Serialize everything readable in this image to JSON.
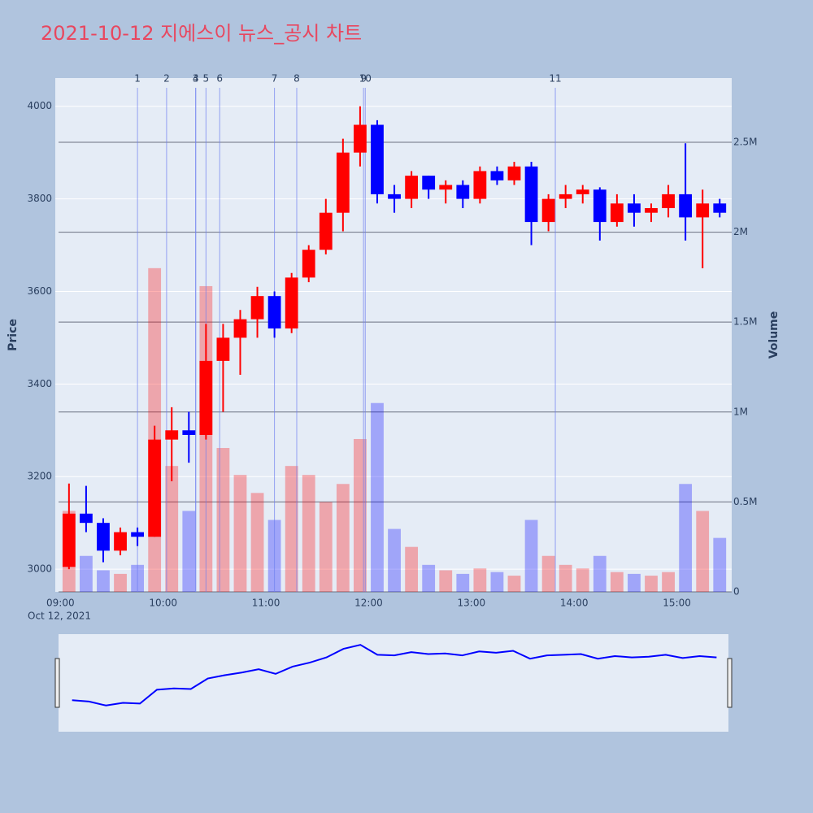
{
  "chart_data": {
    "type": "candlestick",
    "title": "2021-10-12 지에스이 뉴스_공시 차트",
    "x": [
      "09:00",
      "09:10",
      "09:20",
      "09:30",
      "09:40",
      "09:50",
      "10:00",
      "10:10",
      "10:20",
      "10:30",
      "10:40",
      "10:50",
      "11:00",
      "11:10",
      "11:20",
      "11:30",
      "11:40",
      "11:50",
      "12:00",
      "12:10",
      "12:20",
      "12:30",
      "12:40",
      "12:50",
      "13:00",
      "13:10",
      "13:20",
      "13:30",
      "13:40",
      "13:50",
      "14:00",
      "14:10",
      "14:20",
      "14:30",
      "14:40",
      "14:50",
      "15:00",
      "15:10",
      "15:20"
    ],
    "open": [
      3005,
      3120,
      3100,
      3040,
      3080,
      3070,
      3280,
      3300,
      3290,
      3450,
      3500,
      3540,
      3590,
      3520,
      3630,
      3690,
      3770,
      3900,
      3960,
      3810,
      3800,
      3850,
      3820,
      3830,
      3800,
      3860,
      3840,
      3870,
      3750,
      3800,
      3810,
      3820,
      3750,
      3790,
      3770,
      3780,
      3810,
      3760,
      3790
    ],
    "high": [
      3185,
      3180,
      3110,
      3090,
      3090,
      3310,
      3350,
      3340,
      3530,
      3530,
      3560,
      3610,
      3600,
      3640,
      3700,
      3800,
      3930,
      4000,
      3970,
      3830,
      3860,
      3850,
      3840,
      3840,
      3870,
      3870,
      3880,
      3880,
      3810,
      3830,
      3830,
      3825,
      3810,
      3810,
      3790,
      3830,
      3920,
      3820,
      3800
    ],
    "low": [
      3000,
      3080,
      3015,
      3030,
      3050,
      3070,
      3190,
      3230,
      3280,
      3340,
      3420,
      3500,
      3500,
      3510,
      3620,
      3680,
      3730,
      3870,
      3790,
      3770,
      3780,
      3800,
      3790,
      3780,
      3790,
      3830,
      3830,
      3700,
      3730,
      3780,
      3790,
      3710,
      3740,
      3740,
      3750,
      3760,
      3710,
      3650,
      3760
    ],
    "close": [
      3120,
      3100,
      3040,
      3080,
      3070,
      3280,
      3300,
      3290,
      3450,
      3500,
      3540,
      3590,
      3520,
      3630,
      3690,
      3770,
      3900,
      3960,
      3810,
      3800,
      3850,
      3820,
      3830,
      3800,
      3860,
      3840,
      3870,
      3750,
      3800,
      3810,
      3820,
      3750,
      3790,
      3770,
      3780,
      3810,
      3760,
      3790,
      3770
    ],
    "volume": [
      450000,
      200000,
      120000,
      100000,
      150000,
      1800000,
      700000,
      450000,
      1700000,
      800000,
      650000,
      550000,
      400000,
      700000,
      650000,
      500000,
      600000,
      850000,
      1050000,
      350000,
      250000,
      150000,
      120000,
      100000,
      130000,
      110000,
      90000,
      400000,
      200000,
      150000,
      130000,
      200000,
      110000,
      100000,
      90000,
      110000,
      600000,
      450000,
      300000
    ],
    "up_color": "#ff0000",
    "down_color": "#0000ff",
    "xlim": [
      "08:57",
      "15:32"
    ],
    "xticks": [
      "09:00",
      "10:00",
      "11:00",
      "12:00",
      "13:00",
      "14:00",
      "15:00"
    ],
    "x_sublabel": "Oct 12, 2021",
    "ylim": [
      2951,
      4061
    ],
    "yticks": [
      3000,
      3200,
      3400,
      3600,
      3800,
      4000
    ],
    "ylabel": "Price",
    "y2lim": [
      0,
      2857000
    ],
    "y2ticks": [
      0,
      {
        "value": 500000,
        "label": "0.5M"
      },
      {
        "value": 1000000,
        "label": "1M"
      },
      {
        "value": 1500000,
        "label": "1.5M"
      },
      {
        "value": 2000000,
        "label": "2M"
      },
      {
        "value": 2500000,
        "label": "2.5M"
      }
    ],
    "y2label": "Volume",
    "events": [
      {
        "label": "1",
        "x": "09:45"
      },
      {
        "label": "2",
        "x": "10:02"
      },
      {
        "label": "3",
        "x": "10:19"
      },
      {
        "label": "4",
        "x": "10:19"
      },
      {
        "label": "5",
        "x": "10:25"
      },
      {
        "label": "6",
        "x": "10:33"
      },
      {
        "label": "7",
        "x": "11:05"
      },
      {
        "label": "8",
        "x": "11:18"
      },
      {
        "label": "9",
        "x": "11:57"
      },
      {
        "label": "10",
        "x": "11:58"
      },
      {
        "label": "11",
        "x": "13:49"
      }
    ],
    "event_color": "#6f7ff0"
  }
}
